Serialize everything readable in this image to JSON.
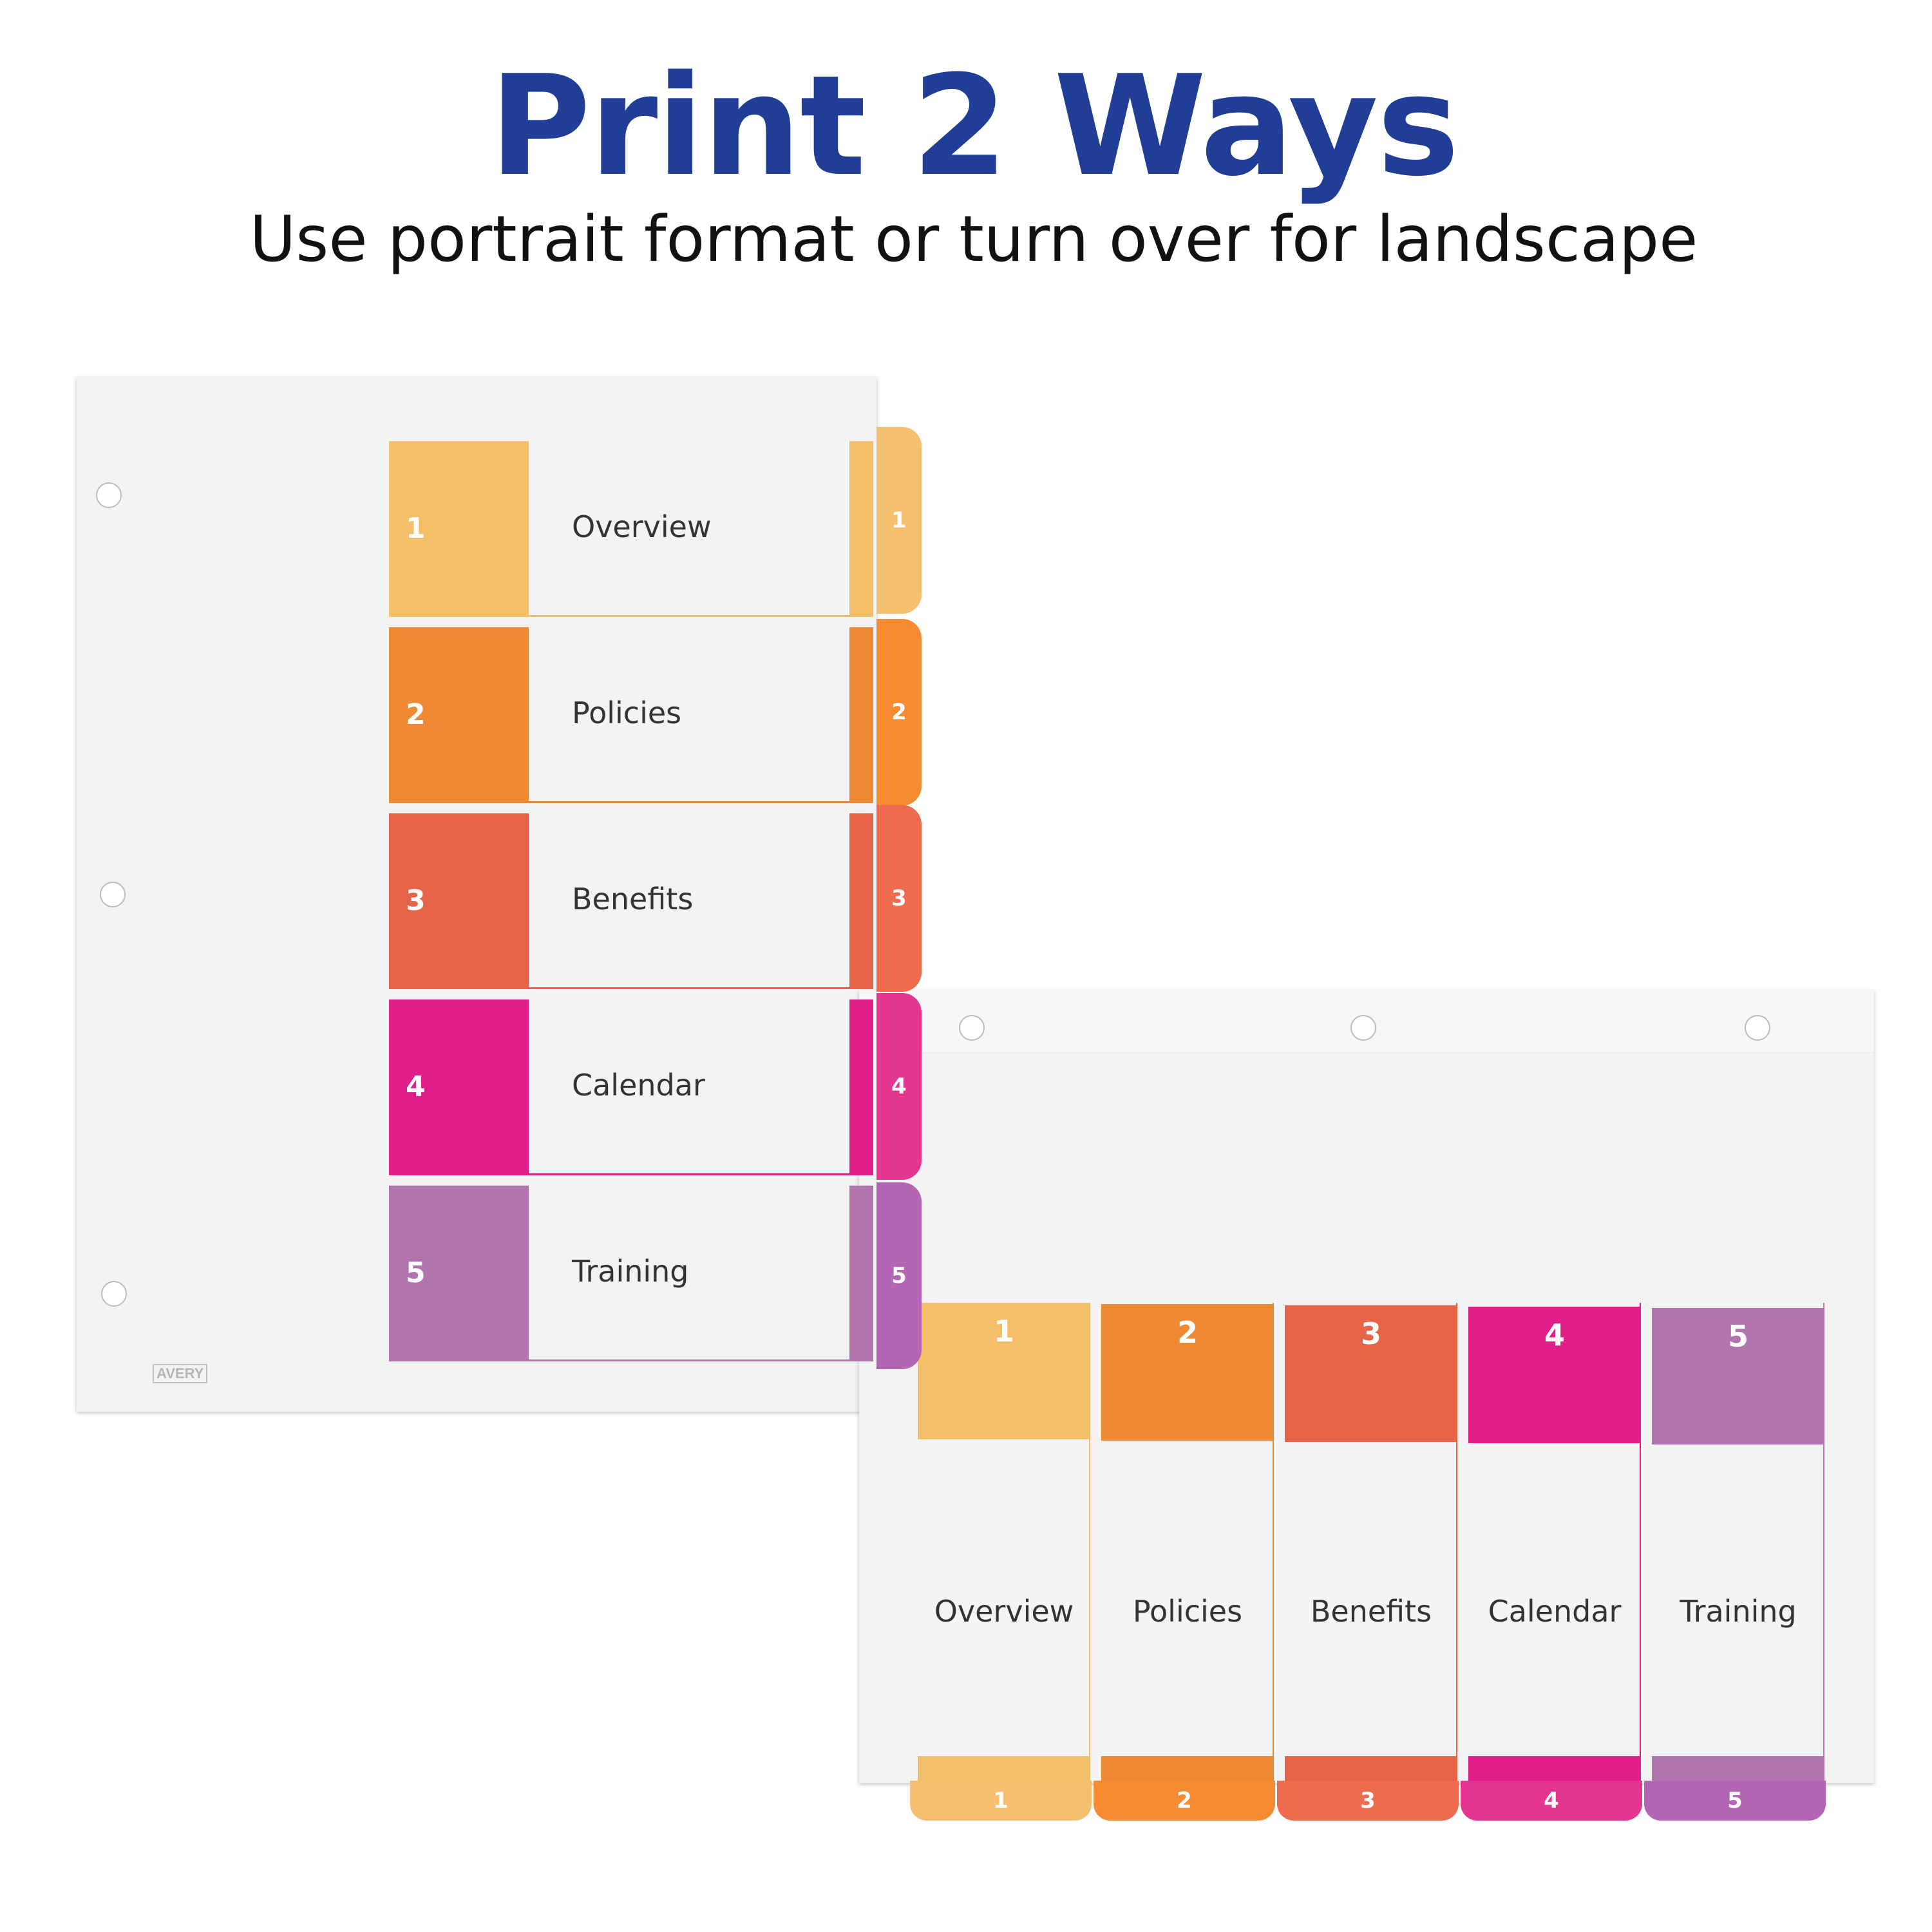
{
  "heading": {
    "title": "Print 2 Ways",
    "subtitle": "Use portrait format or turn over for landscape"
  },
  "brand": {
    "logo_text": "AVERY"
  },
  "sections": [
    {
      "number": "1",
      "label": "Overview",
      "color": "#f4bf68",
      "tab_color": "#f7c071"
    },
    {
      "number": "2",
      "label": "Policies",
      "color": "#ee8a34",
      "tab_color": "#f58b33"
    },
    {
      "number": "3",
      "label": "Benefits",
      "color": "#e66348",
      "tab_color": "#ee6b4e"
    },
    {
      "number": "4",
      "label": "Calendar",
      "color": "#e21e8b",
      "tab_color": "#e4358f"
    },
    {
      "number": "5",
      "label": "Training",
      "color": "#b274ac",
      "tab_color": "#b266b4"
    }
  ]
}
